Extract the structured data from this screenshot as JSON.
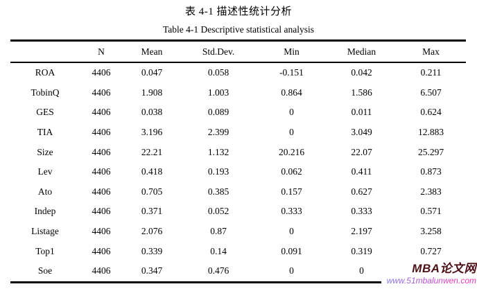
{
  "document": {
    "caption_zh": "表 4-1  描述性统计分析",
    "caption_en": "Table 4-1 Descriptive statistical analysis"
  },
  "table": {
    "columns": [
      "",
      "N",
      "Mean",
      "Std.Dev.",
      "Min",
      "Median",
      "Max"
    ],
    "rows": [
      {
        "label": "ROA",
        "values": [
          "4406",
          "0.047",
          "0.058",
          "-0.151",
          "0.042",
          "0.211"
        ]
      },
      {
        "label": "TobinQ",
        "values": [
          "4406",
          "1.908",
          "1.003",
          "0.864",
          "1.586",
          "6.507"
        ]
      },
      {
        "label": "GES",
        "values": [
          "4406",
          "0.038",
          "0.089",
          "0",
          "0.011",
          "0.624"
        ]
      },
      {
        "label": "TIA",
        "values": [
          "4406",
          "3.196",
          "2.399",
          "0",
          "3.049",
          "12.883"
        ]
      },
      {
        "label": "Size",
        "values": [
          "4406",
          "22.21",
          "1.132",
          "20.216",
          "22.07",
          "25.297"
        ]
      },
      {
        "label": "Lev",
        "values": [
          "4406",
          "0.418",
          "0.193",
          "0.062",
          "0.411",
          "0.873"
        ]
      },
      {
        "label": "Ato",
        "values": [
          "4406",
          "0.705",
          "0.385",
          "0.157",
          "0.627",
          "2.383"
        ]
      },
      {
        "label": "Indep",
        "values": [
          "4406",
          "0.371",
          "0.052",
          "0.333",
          "0.333",
          "0.571"
        ]
      },
      {
        "label": "Listage",
        "values": [
          "4406",
          "2.076",
          "0.87",
          "0",
          "2.197",
          "3.258"
        ]
      },
      {
        "label": "Top1",
        "values": [
          "4406",
          "0.339",
          "0.14",
          "0.091",
          "0.319",
          "0.727"
        ]
      },
      {
        "label": "Soe",
        "values": [
          "4406",
          "0.347",
          "0.476",
          "0",
          "0",
          ""
        ]
      }
    ]
  },
  "watermark": {
    "brand": "MBA论文网",
    "url": "www.51mbalunwen.com",
    "brand_color": "#4c1016",
    "url_color_start": "#7b7ce0",
    "url_color_end": "#ff30b0"
  }
}
